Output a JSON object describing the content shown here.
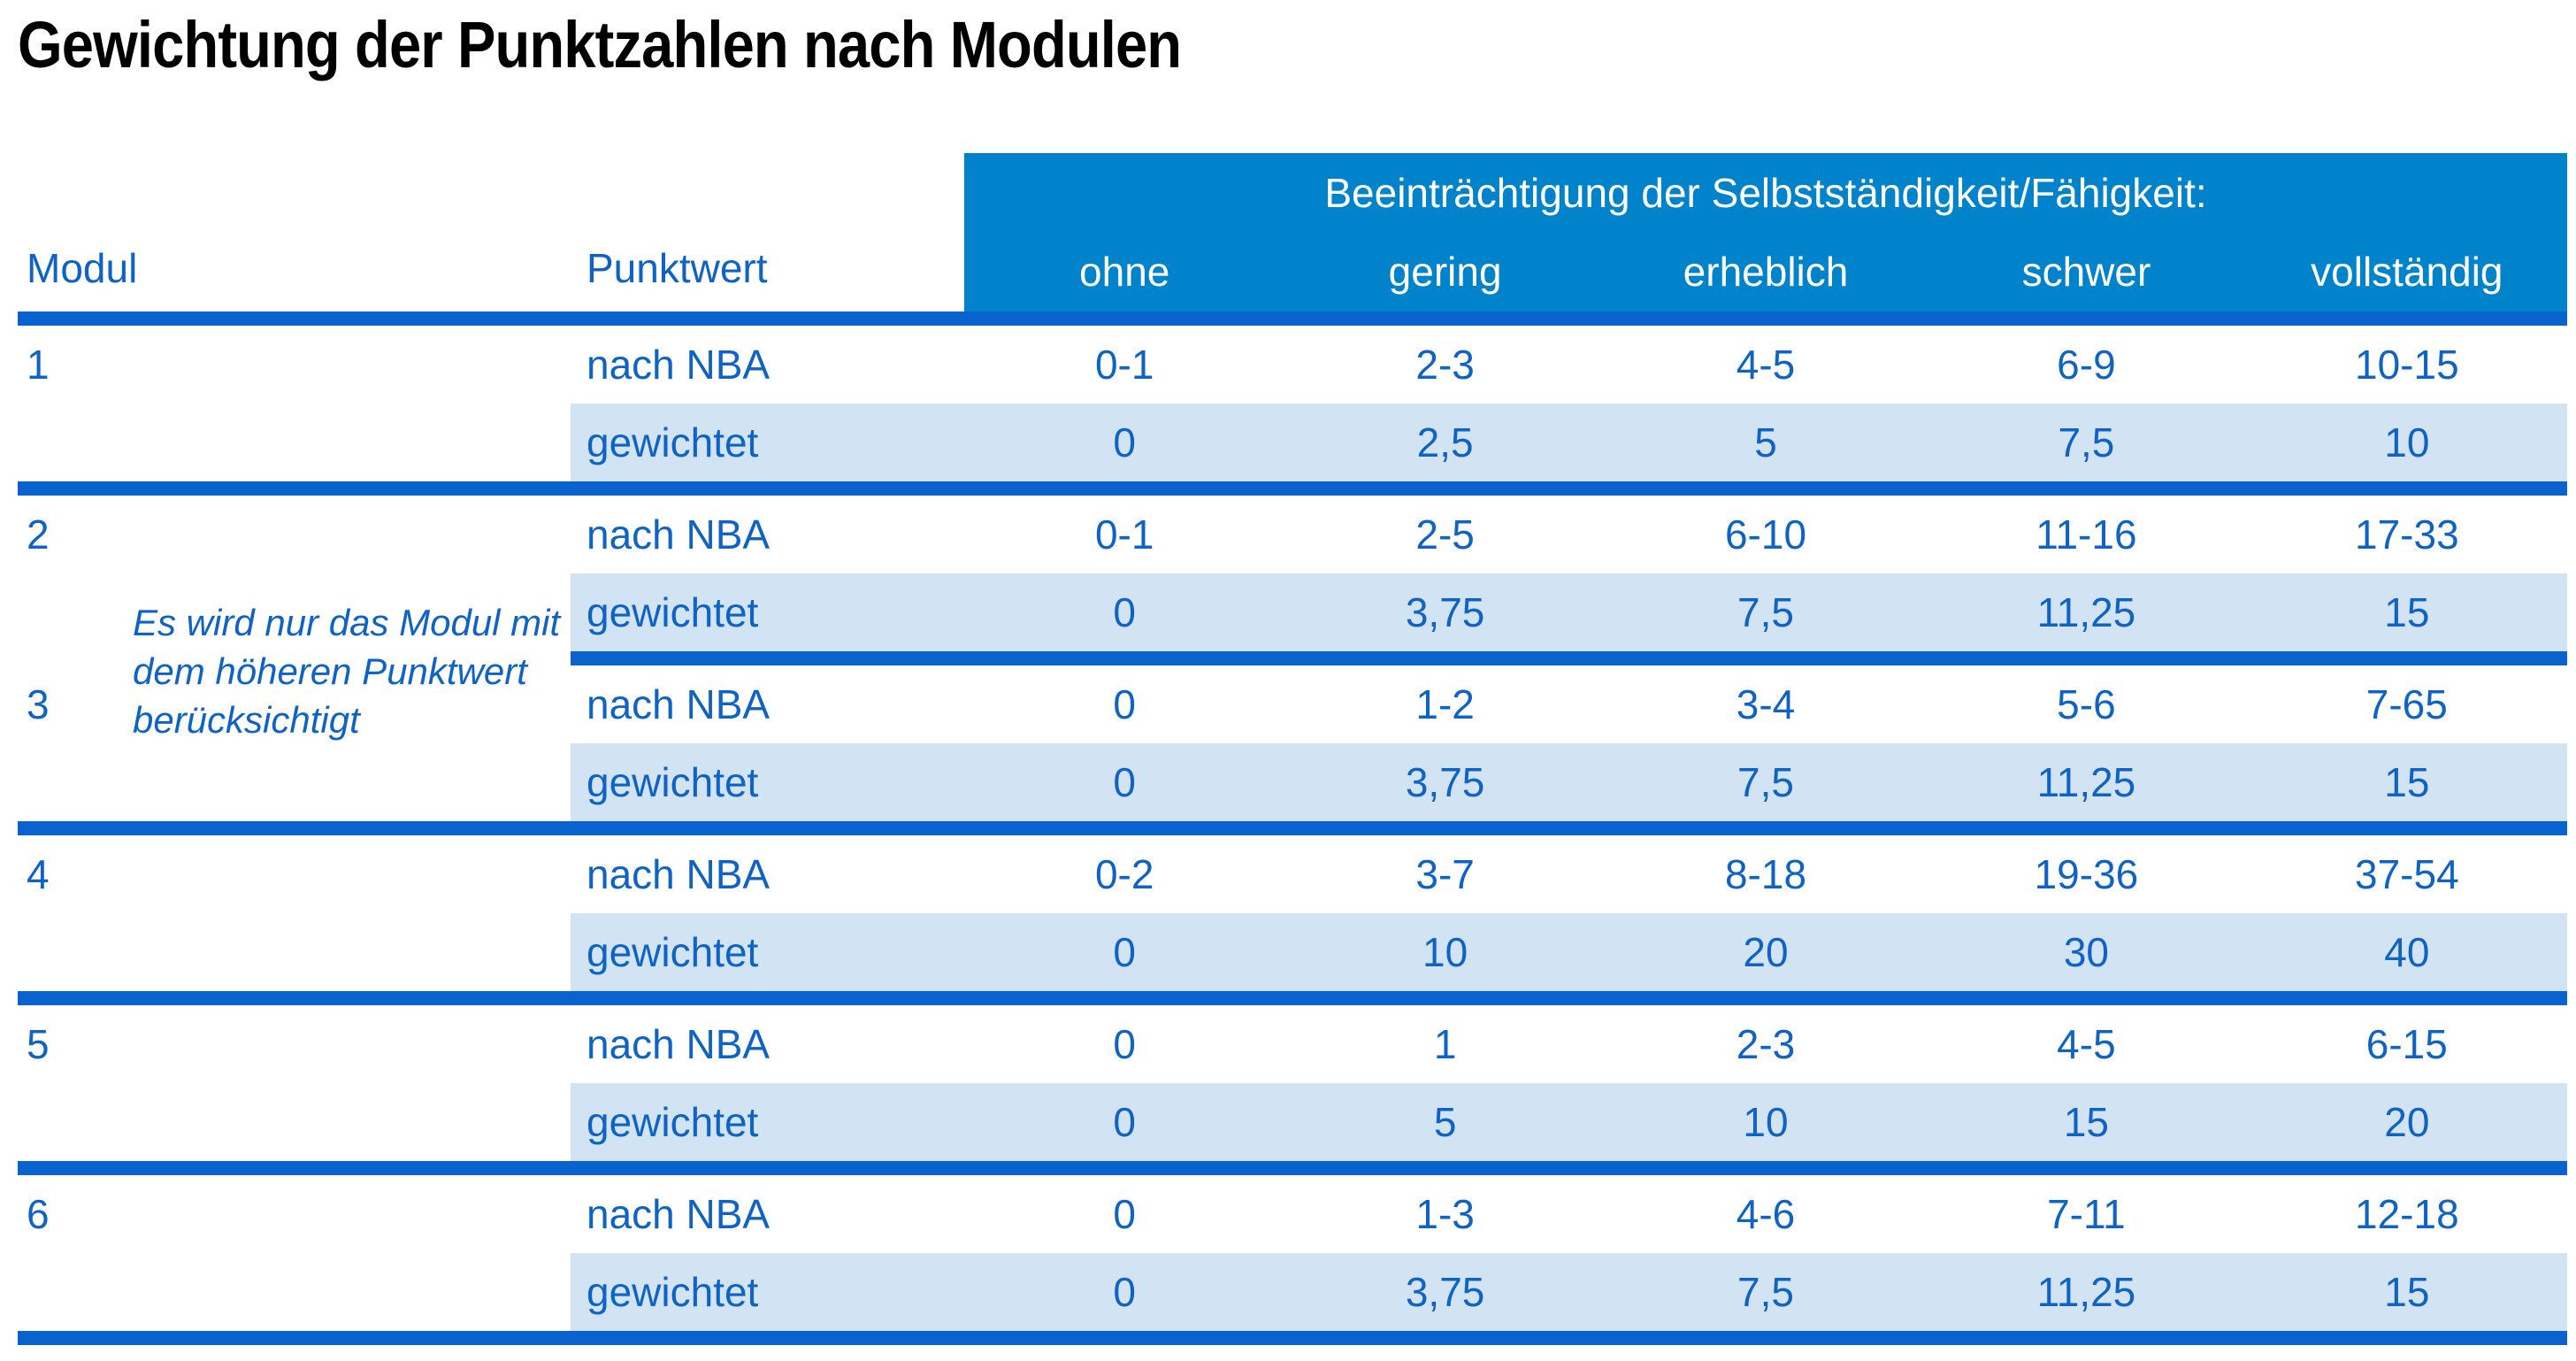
{
  "title": "Gewichtung der Punktzahlen nach Modulen",
  "colors": {
    "band_background": "#0083cb",
    "band_text": "#ffffff",
    "separator_bar": "#0a62ce",
    "shaded_row": "#d2e4f3",
    "table_text": "#0f63c4",
    "title_text": "#000000"
  },
  "table": {
    "group_header": "Beeinträchtigung der Selbstständigkeit/Fähigkeit:",
    "col_modul": "Modul",
    "col_punktwert": "Punktwert",
    "severity_cols": [
      "ohne",
      "gering",
      "erheblich",
      "schwer",
      "vollständig"
    ],
    "row_labels": {
      "nba": "nach NBA",
      "gewichtet": "gewichtet"
    },
    "note": "Es wird nur das Modul mit dem höheren Punktwert berücksichtigt",
    "modules": [
      {
        "id": "1",
        "nba": [
          "0-1",
          "2-3",
          "4-5",
          "6-9",
          "10-15"
        ],
        "gewichtet": [
          "0",
          "2,5",
          "5",
          "7,5",
          "10"
        ]
      },
      {
        "id": "2",
        "nba": [
          "0-1",
          "2-5",
          "6-10",
          "11-16",
          "17-33"
        ],
        "gewichtet": [
          "0",
          "3,75",
          "7,5",
          "11,25",
          "15"
        ]
      },
      {
        "id": "3",
        "nba": [
          "0",
          "1-2",
          "3-4",
          "5-6",
          "7-65"
        ],
        "gewichtet": [
          "0",
          "3,75",
          "7,5",
          "11,25",
          "15"
        ]
      },
      {
        "id": "4",
        "nba": [
          "0-2",
          "3-7",
          "8-18",
          "19-36",
          "37-54"
        ],
        "gewichtet": [
          "0",
          "10",
          "20",
          "30",
          "40"
        ]
      },
      {
        "id": "5",
        "nba": [
          "0",
          "1",
          "2-3",
          "4-5",
          "6-15"
        ],
        "gewichtet": [
          "0",
          "5",
          "10",
          "15",
          "20"
        ]
      },
      {
        "id": "6",
        "nba": [
          "0",
          "1-3",
          "4-6",
          "7-11",
          "12-18"
        ],
        "gewichtet": [
          "0",
          "3,75",
          "7,5",
          "11,25",
          "15"
        ]
      }
    ]
  }
}
